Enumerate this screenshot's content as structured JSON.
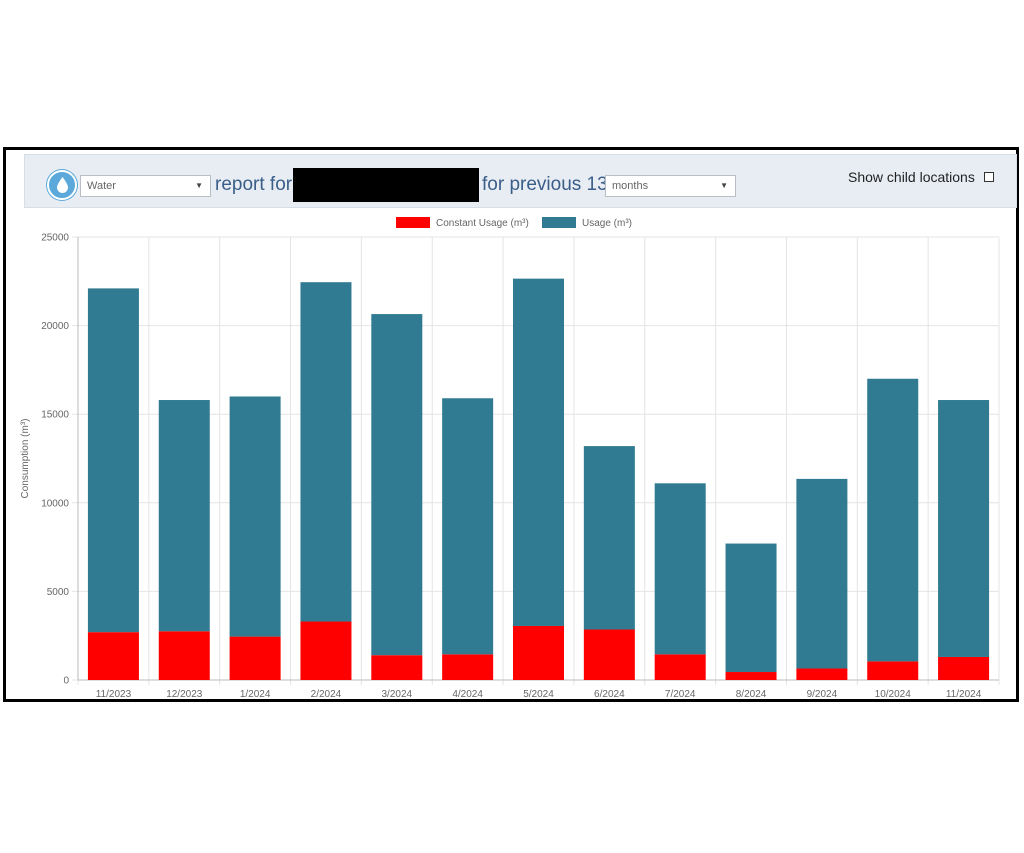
{
  "toolbar": {
    "resource_select": "Water",
    "report_for_text": "report for",
    "for_previous_text": "for previous 13",
    "period_select": "months",
    "show_child_label": "Show child locations"
  },
  "colors": {
    "constant": "#ff0000",
    "usage": "#307b91"
  },
  "chart_data": {
    "type": "bar",
    "stacked": true,
    "categories": [
      "11/2023",
      "12/2023",
      "1/2024",
      "2/2024",
      "3/2024",
      "4/2024",
      "5/2024",
      "6/2024",
      "7/2024",
      "8/2024",
      "9/2024",
      "10/2024",
      "11/2024"
    ],
    "series": [
      {
        "name": "Constant Usage (m³)",
        "values": [
          2700,
          2750,
          2450,
          3300,
          1400,
          1450,
          3050,
          2850,
          1450,
          450,
          650,
          1050,
          1300
        ]
      },
      {
        "name": "Usage (m³)",
        "values": [
          19400,
          13050,
          13550,
          19150,
          19250,
          14450,
          19600,
          10350,
          9650,
          7250,
          10700,
          15950,
          14500
        ]
      }
    ],
    "ylabel": "Consumption (m³)",
    "xlabel": "",
    "ylim": [
      0,
      25000
    ],
    "yticks": [
      0,
      5000,
      10000,
      15000,
      20000,
      25000
    ],
    "grid": true,
    "legend": "top-center"
  }
}
